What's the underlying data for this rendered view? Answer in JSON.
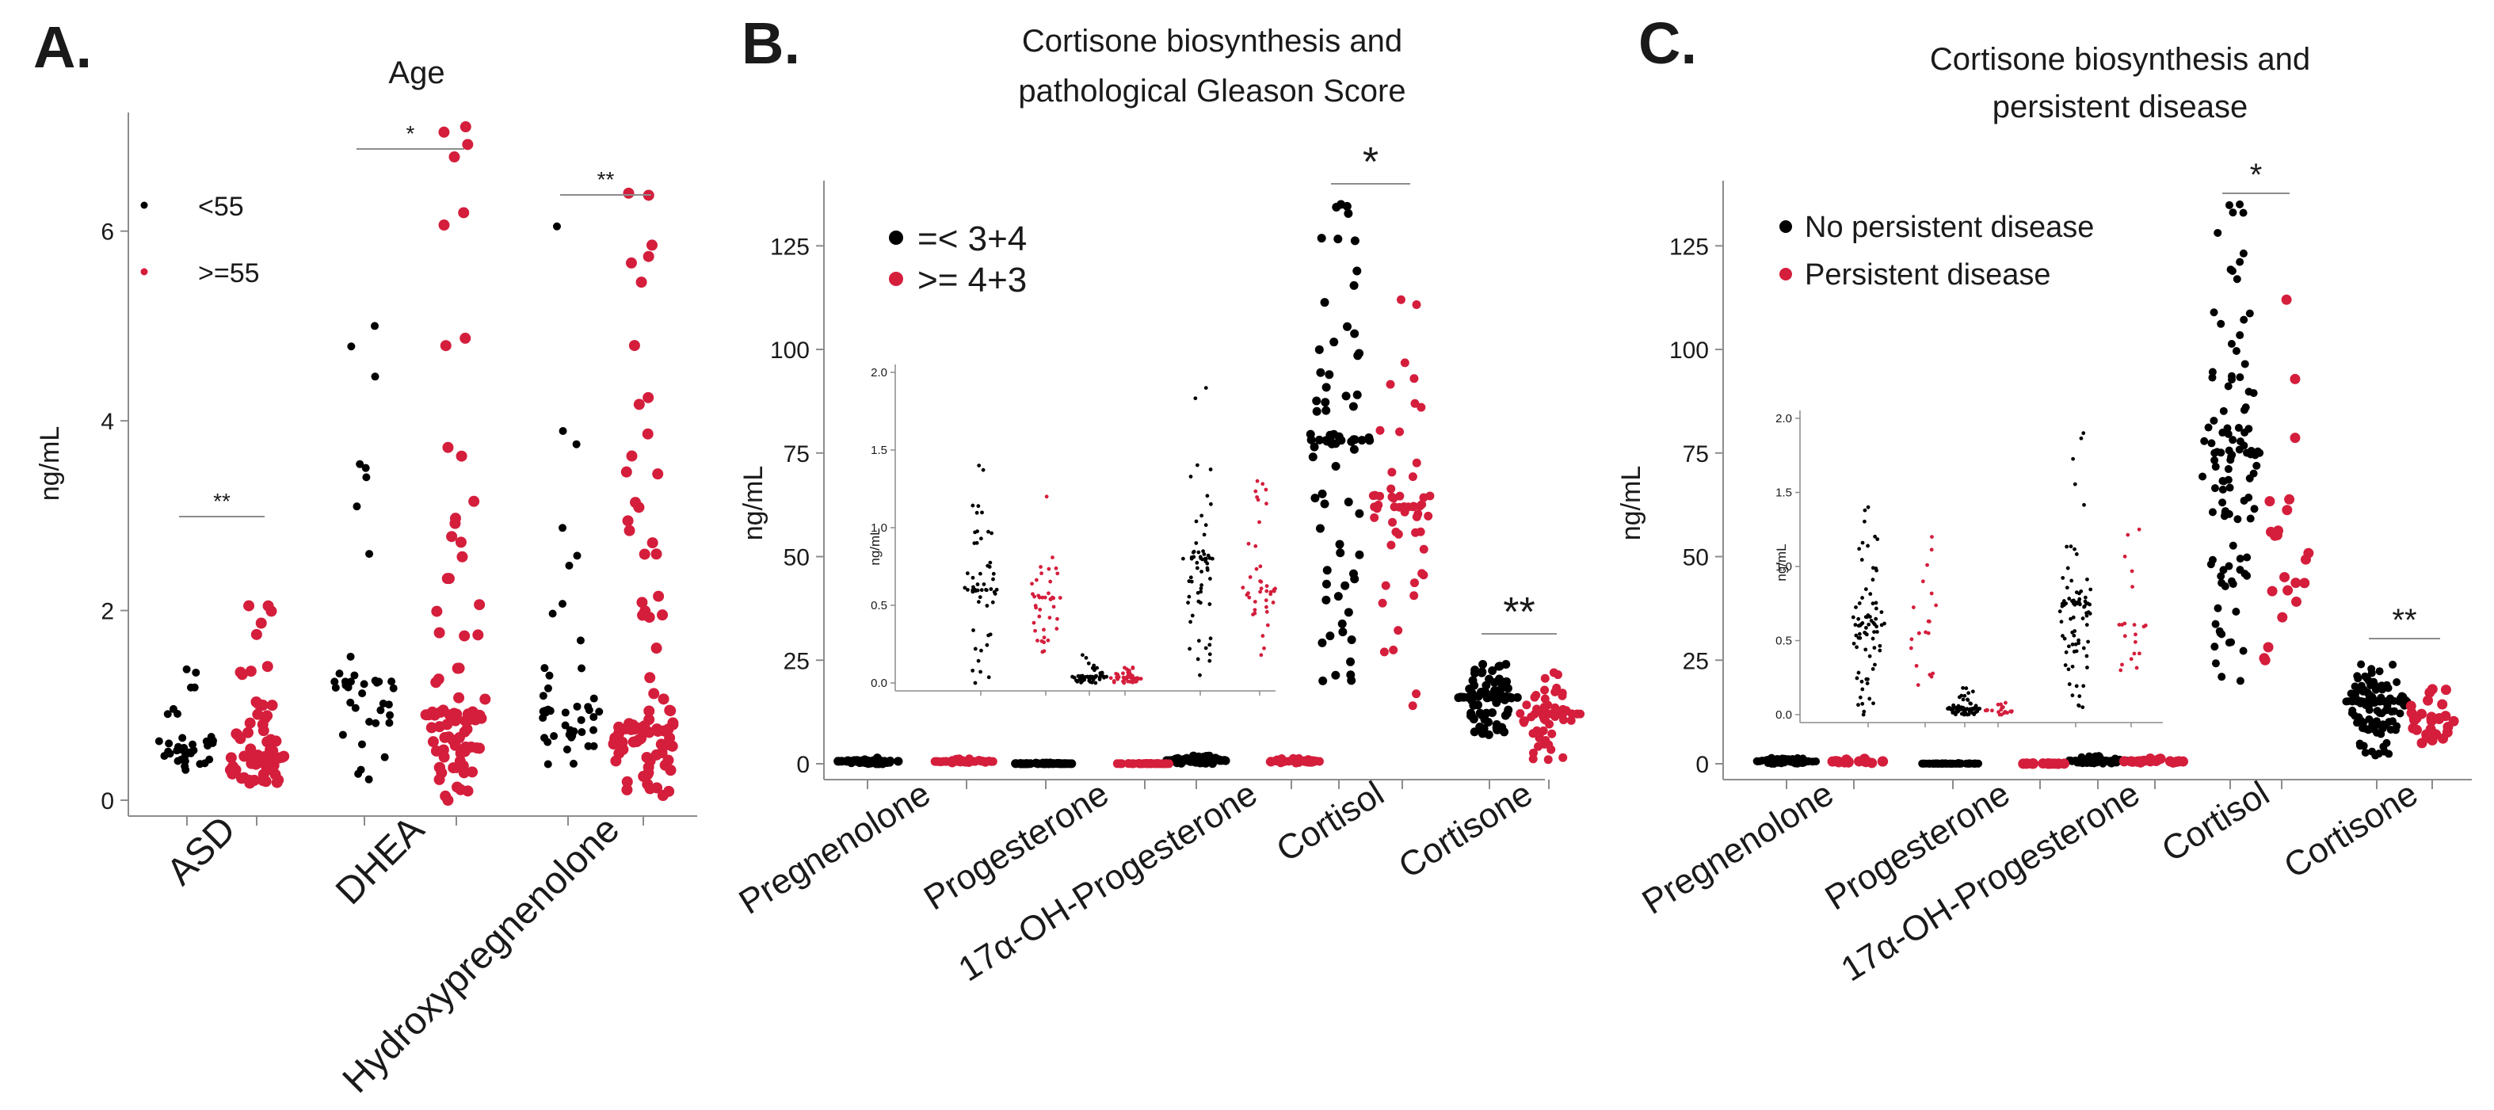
{
  "colors": {
    "group_a": "#000000",
    "group_b": "#d41e3c",
    "axis": "#8c8c8c"
  },
  "panels": [
    {
      "letter": "A.",
      "title_lines": [
        "Age"
      ],
      "ylabel": "ng/mL",
      "legend": [
        "<55",
        ">=55"
      ],
      "legend_style": "small",
      "tick_label_size": "large",
      "bracket_style": "small"
    },
    {
      "letter": "B.",
      "title_lines": [
        "Cortisone biosynthesis and",
        "pathological Gleason Score"
      ],
      "ylabel": "ng/mL",
      "legend": [
        "=< 3+4",
        ">= 4+3"
      ],
      "legend_style": "large",
      "tick_label_size": "large",
      "bracket_style": "large",
      "inset": {
        "ylabel": "ng/mL"
      }
    },
    {
      "letter": "C.",
      "title_lines": [
        "Cortisone biosynthesis and",
        "persistent disease"
      ],
      "ylabel": "ng/mL",
      "legend": [
        "No persistent disease",
        "Persistent disease"
      ],
      "legend_style": "medium",
      "tick_label_size": "large",
      "bracket_style": "small",
      "inset": {
        "ylabel": "ng/mL"
      }
    }
  ],
  "chart_data": [
    {
      "type": "scatter",
      "title": "Age",
      "ylabel": "ng/mL",
      "ylim": [
        0,
        7
      ],
      "yticks": [
        0,
        2,
        4,
        6
      ],
      "categories": [
        "ASD",
        "DHEA",
        "Hydroxypregnenolone"
      ],
      "series": [
        {
          "name": "<55",
          "stats": [
            {
              "category": "ASD",
              "median": 0.62,
              "min": 0.32,
              "max": 1.38,
              "n": 35
            },
            {
              "category": "DHEA",
              "median": 1.25,
              "min": 0.22,
              "max": 5.0,
              "n": 40
            },
            {
              "category": "Hydroxypregnenolone",
              "median": 0.95,
              "min": 0.38,
              "max": 6.05,
              "n": 45
            }
          ]
        },
        {
          "name": ">=55",
          "stats": [
            {
              "category": "ASD",
              "median": 0.45,
              "min": 0.18,
              "max": 2.05,
              "n": 70
            },
            {
              "category": "DHEA",
              "median": 0.9,
              "min": 0.0,
              "max": 7.1,
              "n": 90
            },
            {
              "category": "Hydroxypregnenolone",
              "median": 0.75,
              "min": 0.05,
              "max": 6.4,
              "n": 90
            }
          ]
        }
      ],
      "significance": [
        {
          "category": "ASD",
          "label": "**"
        },
        {
          "category": "DHEA",
          "label": "*"
        },
        {
          "category": "Hydroxypregnenolone",
          "label": "**"
        }
      ]
    },
    {
      "type": "scatter",
      "title": "Cortisone biosynthesis and pathological Gleason Score",
      "ylabel": "ng/mL",
      "ylim": [
        0,
        135
      ],
      "yticks": [
        0,
        25,
        50,
        75,
        100,
        125
      ],
      "categories": [
        "Pregnenolone",
        "Progesterone",
        "17α-OH-Progesterone",
        "Cortisol",
        "Cortisone"
      ],
      "series": [
        {
          "name": "=< 3+4",
          "stats": [
            {
              "category": "Pregnenolone",
              "median": 0.6,
              "min": 0.0,
              "max": 1.4,
              "n": 55
            },
            {
              "category": "Progesterone",
              "median": 0.04,
              "min": 0.0,
              "max": 0.18,
              "n": 55
            },
            {
              "category": "17α-OH-Progesterone",
              "median": 0.8,
              "min": 0.05,
              "max": 1.9,
              "n": 60
            },
            {
              "category": "Cortisol",
              "median": 78,
              "min": 20,
              "max": 135,
              "n": 75
            },
            {
              "category": "Cortisone",
              "median": 16,
              "min": 7,
              "max": 24,
              "n": 85
            }
          ]
        },
        {
          "name": ">= 4+3",
          "stats": [
            {
              "category": "Pregnenolone",
              "median": 0.55,
              "min": 0.2,
              "max": 1.2,
              "n": 40
            },
            {
              "category": "Progesterone",
              "median": 0.03,
              "min": 0.0,
              "max": 0.1,
              "n": 40
            },
            {
              "category": "17α-OH-Progesterone",
              "median": 0.6,
              "min": 0.18,
              "max": 1.3,
              "n": 40
            },
            {
              "category": "Cortisol",
              "median": 62,
              "min": 14,
              "max": 112,
              "n": 55
            },
            {
              "category": "Cortisone",
              "median": 12,
              "min": 1,
              "max": 22,
              "n": 60
            }
          ]
        }
      ],
      "significance": [
        {
          "category": "Cortisol",
          "label": "*"
        },
        {
          "category": "Cortisone",
          "label": "**"
        }
      ],
      "inset": {
        "ylabel": "ng/mL",
        "ylim": [
          0,
          2.0
        ],
        "yticks": [
          0.0,
          0.5,
          1.0,
          1.5,
          2.0
        ],
        "categories": [
          "Pregnenolone",
          "Progesterone",
          "17α-OH-Progesterone"
        ]
      }
    },
    {
      "type": "scatter",
      "title": "Cortisone biosynthesis and persistent disease",
      "ylabel": "ng/mL",
      "ylim": [
        0,
        135
      ],
      "yticks": [
        0,
        25,
        50,
        75,
        100,
        125
      ],
      "categories": [
        "Pregnenolone",
        "Progesterone",
        "17α-OH-Progesterone",
        "Cortisol",
        "Cortisone"
      ],
      "series": [
        {
          "name": "No persistent disease",
          "stats": [
            {
              "category": "Pregnenolone",
              "median": 0.6,
              "min": 0.0,
              "max": 1.4,
              "n": 75
            },
            {
              "category": "Progesterone",
              "median": 0.04,
              "min": 0.0,
              "max": 0.18,
              "n": 75
            },
            {
              "category": "17α-OH-Progesterone",
              "median": 0.75,
              "min": 0.05,
              "max": 1.9,
              "n": 80
            },
            {
              "category": "Cortisol",
              "median": 75,
              "min": 20,
              "max": 135,
              "n": 110
            },
            {
              "category": "Cortisone",
              "median": 15,
              "min": 2,
              "max": 24,
              "n": 120
            }
          ]
        },
        {
          "name": "Persistent disease",
          "stats": [
            {
              "category": "Pregnenolone",
              "median": 0.55,
              "min": 0.2,
              "max": 1.2,
              "n": 20
            },
            {
              "category": "Progesterone",
              "median": 0.03,
              "min": 0.0,
              "max": 0.08,
              "n": 20
            },
            {
              "category": "17α-OH-Progesterone",
              "median": 0.6,
              "min": 0.3,
              "max": 1.25,
              "n": 20
            },
            {
              "category": "Cortisol",
              "median": 55,
              "min": 25,
              "max": 112,
              "n": 22
            },
            {
              "category": "Cortisone",
              "median": 11,
              "min": 5,
              "max": 18,
              "n": 30
            }
          ]
        }
      ],
      "significance": [
        {
          "category": "Cortisol",
          "label": "*"
        },
        {
          "category": "Cortisone",
          "label": "**"
        }
      ],
      "inset": {
        "ylabel": "ng/mL",
        "ylim": [
          0,
          2.0
        ],
        "yticks": [
          0.0,
          0.5,
          1.0,
          1.5,
          2.0
        ],
        "categories": [
          "Pregnenolone",
          "Progesterone",
          "17α-OH-Progesterone"
        ]
      }
    }
  ]
}
